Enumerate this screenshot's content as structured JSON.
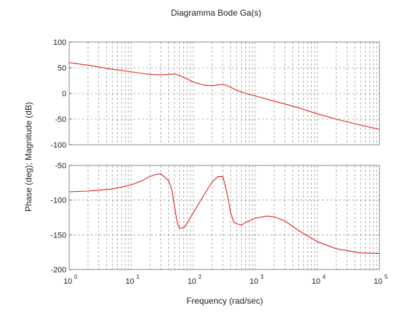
{
  "chart_data": {
    "type": "line",
    "title": "Diagramma Bode Ga(s)",
    "xlabel": "Frequency (rad/sec)",
    "ylabel": "Phase (deg); Magnitude (dB)",
    "x_scale": "log",
    "xlim": [
      1,
      100000
    ],
    "x_tick_labels": [
      {
        "base": "10",
        "exp": "0"
      },
      {
        "base": "10",
        "exp": "1"
      },
      {
        "base": "10",
        "exp": "2"
      },
      {
        "base": "10",
        "exp": "3"
      },
      {
        "base": "10",
        "exp": "4"
      },
      {
        "base": "10",
        "exp": "5"
      }
    ],
    "grid": true,
    "line_color": "#e02020",
    "subplots": [
      {
        "name": "magnitude",
        "ylim": [
          -100,
          100
        ],
        "yticks": [
          100,
          50,
          0,
          -50,
          -100
        ],
        "series": [
          {
            "x": [
              1,
              2,
              5,
              10,
              20,
              30,
              40,
              50,
              60,
              80,
              100,
              150,
              200,
              300,
              400,
              500,
              700,
              1000,
              2000,
              5000,
              10000,
              20000,
              50000,
              100000
            ],
            "y": [
              60,
              55,
              47,
              42,
              37,
              36,
              37,
              38,
              35,
              28,
              22,
              16,
              15,
              18,
              12,
              6,
              0,
              -5,
              -15,
              -28,
              -40,
              -50,
              -62,
              -70
            ]
          }
        ]
      },
      {
        "name": "phase",
        "ylim": [
          -200,
          -50
        ],
        "yticks": [
          -50,
          -100,
          -150,
          -200
        ],
        "series": [
          {
            "x": [
              1,
              2,
              5,
              10,
              15,
              20,
              25,
              30,
              40,
              45,
              50,
              55,
              60,
              70,
              80,
              100,
              150,
              200,
              250,
              300,
              350,
              400,
              450,
              500,
              600,
              700,
              1000,
              1500,
              2000,
              3000,
              5000,
              10000,
              20000,
              50000,
              100000
            ],
            "y": [
              -88,
              -87,
              -84,
              -78,
              -72,
              -66,
              -63,
              -62,
              -72,
              -85,
              -110,
              -132,
              -141,
              -140,
              -133,
              -118,
              -92,
              -74,
              -66,
              -66,
              -90,
              -118,
              -132,
              -134,
              -136,
              -132,
              -126,
              -123,
              -124,
              -130,
              -144,
              -160,
              -170,
              -176,
              -177
            ]
          }
        ]
      }
    ]
  }
}
